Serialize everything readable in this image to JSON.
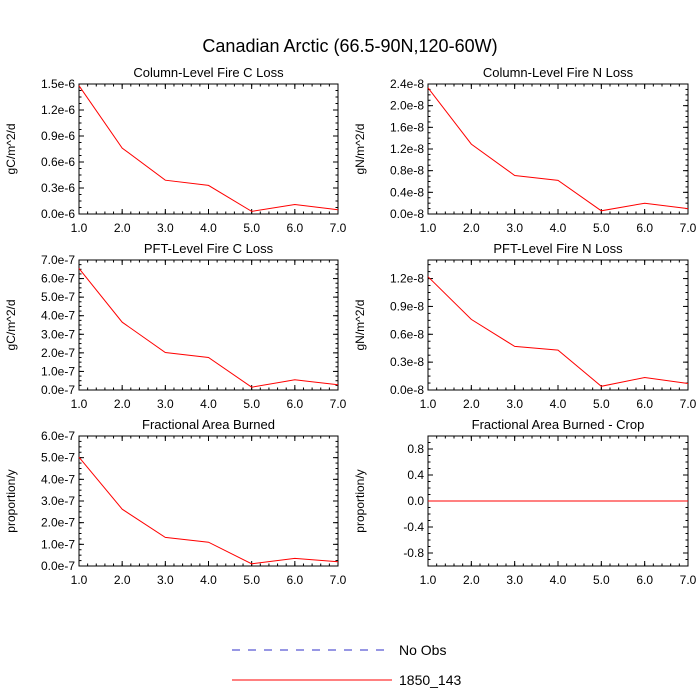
{
  "figure_title": "Canadian Arctic (66.5-90N,120-60W)",
  "colors": {
    "model_line": "#ff0000",
    "obs_line": "#2f2fc8",
    "axis": "#000000"
  },
  "legend": {
    "entries": [
      {
        "label": "No Obs",
        "style": "dashed",
        "color": "#2f2fc8"
      },
      {
        "label": "1850_143",
        "style": "solid",
        "color": "#ff0000"
      }
    ]
  },
  "chart_data": [
    {
      "type": "line",
      "title": "Column-Level Fire C Loss",
      "ylabel": "gC/m^2/d",
      "x": [
        1,
        2,
        3,
        4,
        5,
        6,
        7
      ],
      "xlim": [
        1,
        7
      ],
      "xticks": [
        "1.0",
        "2.0",
        "3.0",
        "4.0",
        "5.0",
        "6.0",
        "7.0"
      ],
      "ylim": [
        0,
        1.5e-06
      ],
      "yticks": [
        {
          "v": 0,
          "label": "0.0e-6"
        },
        {
          "v": 3e-07,
          "label": "0.3e-6"
        },
        {
          "v": 6e-07,
          "label": "0.6e-6"
        },
        {
          "v": 9e-07,
          "label": "0.9e-6"
        },
        {
          "v": 1.2e-06,
          "label": "1.2e-6"
        },
        {
          "v": 1.5e-06,
          "label": "1.5e-6"
        }
      ],
      "series": [
        {
          "name": "1850_143",
          "values": [
            1.48e-06,
            7.6e-07,
            3.9e-07,
            3.3e-07,
            3e-08,
            1.1e-07,
            5e-08
          ]
        }
      ]
    },
    {
      "type": "line",
      "title": "Column-Level Fire N Loss",
      "ylabel": "gN/m^2/d",
      "x": [
        1,
        2,
        3,
        4,
        5,
        6,
        7
      ],
      "xlim": [
        1,
        7
      ],
      "xticks": [
        "1.0",
        "2.0",
        "3.0",
        "4.0",
        "5.0",
        "6.0",
        "7.0"
      ],
      "ylim": [
        0,
        2.4e-08
      ],
      "yticks": [
        {
          "v": 0,
          "label": "0.0e-8"
        },
        {
          "v": 4e-09,
          "label": "0.4e-8"
        },
        {
          "v": 8e-09,
          "label": "0.8e-8"
        },
        {
          "v": 1.2e-08,
          "label": "1.2e-8"
        },
        {
          "v": 1.6e-08,
          "label": "1.6e-8"
        },
        {
          "v": 2e-08,
          "label": "2.0e-8"
        },
        {
          "v": 2.4e-08,
          "label": "2.4e-8"
        }
      ],
      "series": [
        {
          "name": "1850_143",
          "values": [
            2.33e-08,
            1.29e-08,
            7.1e-09,
            6.2e-09,
            6e-10,
            2e-09,
            1e-09
          ]
        }
      ]
    },
    {
      "type": "line",
      "title": "PFT-Level Fire C Loss",
      "ylabel": "gC/m^2/d",
      "x": [
        1,
        2,
        3,
        4,
        5,
        6,
        7
      ],
      "xlim": [
        1,
        7
      ],
      "xticks": [
        "1.0",
        "2.0",
        "3.0",
        "4.0",
        "5.0",
        "6.0",
        "7.0"
      ],
      "ylim": [
        0,
        7e-07
      ],
      "yticks": [
        {
          "v": 0,
          "label": "0.0e-7"
        },
        {
          "v": 1e-07,
          "label": "1.0e-7"
        },
        {
          "v": 2e-07,
          "label": "2.0e-7"
        },
        {
          "v": 3e-07,
          "label": "3.0e-7"
        },
        {
          "v": 4e-07,
          "label": "4.0e-7"
        },
        {
          "v": 5e-07,
          "label": "5.0e-7"
        },
        {
          "v": 6e-07,
          "label": "6.0e-7"
        },
        {
          "v": 7e-07,
          "label": "7.0e-7"
        }
      ],
      "series": [
        {
          "name": "1850_143",
          "values": [
            6.55e-07,
            3.65e-07,
            2.02e-07,
            1.75e-07,
            1.5e-08,
            5.5e-08,
            2.8e-08
          ]
        }
      ]
    },
    {
      "type": "line",
      "title": "PFT-Level Fire N Loss",
      "ylabel": "gN/m^2/d",
      "x": [
        1,
        2,
        3,
        4,
        5,
        6,
        7
      ],
      "xlim": [
        1,
        7
      ],
      "xticks": [
        "1.0",
        "2.0",
        "3.0",
        "4.0",
        "5.0",
        "6.0",
        "7.0"
      ],
      "ylim": [
        0,
        1.4e-08
      ],
      "yticks": [
        {
          "v": 0,
          "label": "0.0e-8"
        },
        {
          "v": 3e-09,
          "label": "0.3e-8"
        },
        {
          "v": 6e-09,
          "label": "0.6e-8"
        },
        {
          "v": 9e-09,
          "label": "0.9e-8"
        },
        {
          "v": 1.2e-08,
          "label": "1.2e-8"
        }
      ],
      "series": [
        {
          "name": "1850_143",
          "values": [
            1.22e-08,
            7.6e-09,
            4.7e-09,
            4.3e-09,
            4e-10,
            1.35e-09,
            7e-10
          ]
        }
      ]
    },
    {
      "type": "line",
      "title": "Fractional Area Burned",
      "ylabel": "proportion/y",
      "x": [
        1,
        2,
        3,
        4,
        5,
        6,
        7
      ],
      "xlim": [
        1,
        7
      ],
      "xticks": [
        "1.0",
        "2.0",
        "3.0",
        "4.0",
        "5.0",
        "6.0",
        "7.0"
      ],
      "ylim": [
        0,
        6e-07
      ],
      "yticks": [
        {
          "v": 0,
          "label": "0.0e-7"
        },
        {
          "v": 1e-07,
          "label": "1.0e-7"
        },
        {
          "v": 2e-07,
          "label": "2.0e-7"
        },
        {
          "v": 3e-07,
          "label": "3.0e-7"
        },
        {
          "v": 4e-07,
          "label": "4.0e-7"
        },
        {
          "v": 5e-07,
          "label": "5.0e-7"
        },
        {
          "v": 6e-07,
          "label": "6.0e-7"
        }
      ],
      "series": [
        {
          "name": "1850_143",
          "values": [
            5.02e-07,
            2.62e-07,
            1.32e-07,
            1.1e-07,
            1e-08,
            3.5e-08,
            2e-08
          ]
        }
      ]
    },
    {
      "type": "line",
      "title": "Fractional Area Burned - Crop",
      "ylabel": "proportion/y",
      "x": [
        1,
        2,
        3,
        4,
        5,
        6,
        7
      ],
      "xlim": [
        1,
        7
      ],
      "xticks": [
        "1.0",
        "2.0",
        "3.0",
        "4.0",
        "5.0",
        "6.0",
        "7.0"
      ],
      "ylim": [
        -1.0,
        1.0
      ],
      "yticks": [
        {
          "v": -0.8,
          "label": "-0.8"
        },
        {
          "v": -0.4,
          "label": "-0.4"
        },
        {
          "v": 0,
          "label": "0.0"
        },
        {
          "v": 0.4,
          "label": "0.4"
        },
        {
          "v": 0.8,
          "label": "0.8"
        }
      ],
      "series": [
        {
          "name": "1850_143",
          "values": [
            0,
            0,
            0,
            0,
            0,
            0,
            0
          ]
        }
      ]
    }
  ]
}
